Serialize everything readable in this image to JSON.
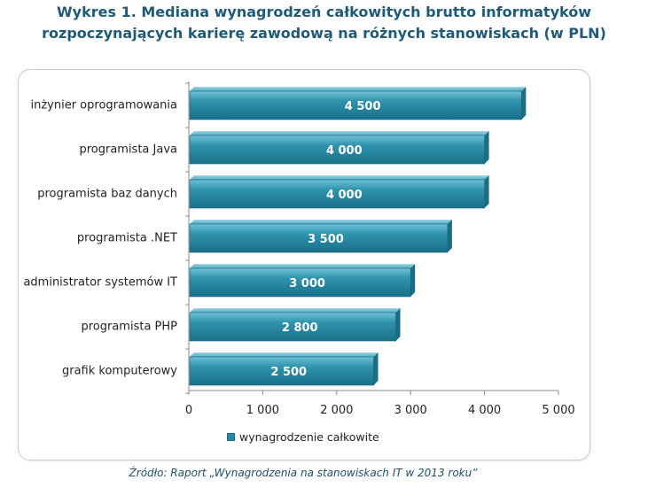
{
  "title_line1": "Wykres 1. Mediana wynagrodzeń całkowitych brutto informatyków",
  "title_line2": "rozpoczynających karierę zawodową na różnych stanowiskach (w PLN)",
  "source": "Źródło: Raport „Wynagrodzenia na stanowiskach IT w 2013 roku”",
  "colors": {
    "bar": "#2a8aa5",
    "bar_light": "#5fb6cc",
    "bar_dark": "#1c6d84",
    "title": "#1f5a78"
  },
  "chart_data": {
    "type": "bar",
    "orientation": "horizontal",
    "categories": [
      "inżynier oprogramowania",
      "programista Java",
      "programista baz danych",
      "programista .NET",
      "administrator systemów IT",
      "programista PHP",
      "grafik komputerowy"
    ],
    "series": [
      {
        "name": "wynagrodzenie całkowite",
        "values": [
          4500,
          4000,
          4000,
          3500,
          3000,
          2800,
          2500
        ],
        "value_labels": [
          "4 500",
          "4 000",
          "4 000",
          "3 500",
          "3 000",
          "2 800",
          "2 500"
        ]
      }
    ],
    "xlim": [
      0,
      5000
    ],
    "x_ticks": [
      0,
      1000,
      2000,
      3000,
      4000,
      5000
    ],
    "x_tick_labels": [
      "0",
      "1 000",
      "2 000",
      "3 000",
      "4 000",
      "5 000"
    ],
    "grid": false,
    "legend_position": "bottom"
  }
}
